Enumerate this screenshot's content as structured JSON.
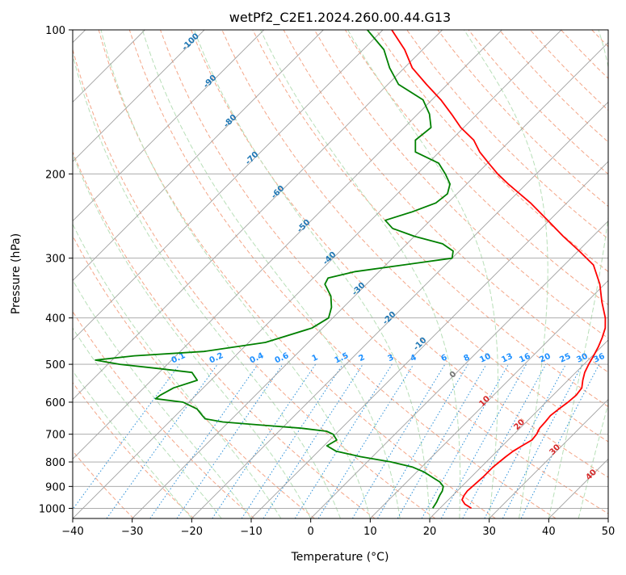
{
  "chart_data": {
    "type": "line",
    "title": "wetPf2_C2E1.2024.260.00.44.G13",
    "xlabel": "Temperature (°C)",
    "ylabel": "Pressure (hPa)",
    "xlim": [
      -40,
      50
    ],
    "ylim": [
      1050,
      100
    ],
    "y_scale": "log",
    "x_ticks": [
      -40,
      -30,
      -20,
      -10,
      0,
      10,
      20,
      30,
      40,
      50
    ],
    "y_ticks": [
      100,
      200,
      300,
      400,
      500,
      600,
      700,
      800,
      900,
      1000
    ],
    "grid": true,
    "skew_deg": 45,
    "series": [
      {
        "key": "temperature",
        "color": "#ff0000",
        "points": [
          [
            1000,
            25.3
          ],
          [
            980,
            23.5
          ],
          [
            960,
            22.3
          ],
          [
            940,
            21.9
          ],
          [
            920,
            21.7
          ],
          [
            900,
            21.8
          ],
          [
            880,
            21.9
          ],
          [
            860,
            22.0
          ],
          [
            840,
            22.0
          ],
          [
            820,
            22.0
          ],
          [
            800,
            22.2
          ],
          [
            780,
            22.4
          ],
          [
            760,
            22.7
          ],
          [
            740,
            23.3
          ],
          [
            720,
            24.0
          ],
          [
            700,
            23.8
          ],
          [
            680,
            23.3
          ],
          [
            660,
            23.2
          ],
          [
            640,
            23.0
          ],
          [
            620,
            23.3
          ],
          [
            600,
            23.7
          ],
          [
            580,
            23.9
          ],
          [
            560,
            23.6
          ],
          [
            540,
            22.5
          ],
          [
            520,
            21.5
          ],
          [
            500,
            20.8
          ],
          [
            480,
            20.2
          ],
          [
            460,
            19.5
          ],
          [
            440,
            18.6
          ],
          [
            420,
            17.5
          ],
          [
            400,
            15.8
          ],
          [
            370,
            12.5
          ],
          [
            340,
            9.2
          ],
          [
            310,
            4.9
          ],
          [
            290,
            0.2
          ],
          [
            270,
            -5.0
          ],
          [
            250,
            -10.3
          ],
          [
            230,
            -16.1
          ],
          [
            210,
            -23.0
          ],
          [
            200,
            -26.5
          ],
          [
            190,
            -29.8
          ],
          [
            180,
            -33.2
          ],
          [
            170,
            -36.2
          ],
          [
            160,
            -40.5
          ],
          [
            150,
            -44.3
          ],
          [
            140,
            -48.5
          ],
          [
            130,
            -53.5
          ],
          [
            120,
            -58.7
          ],
          [
            110,
            -63.0
          ],
          [
            100,
            -68.5
          ]
        ]
      },
      {
        "key": "dewpoint",
        "color": "#008000",
        "points": [
          [
            1000,
            18.8
          ],
          [
            970,
            18.4
          ],
          [
            940,
            17.8
          ],
          [
            920,
            17.5
          ],
          [
            900,
            16.9
          ],
          [
            880,
            15.5
          ],
          [
            860,
            13.4
          ],
          [
            840,
            11.3
          ],
          [
            820,
            8.5
          ],
          [
            800,
            4.0
          ],
          [
            790,
            1.0
          ],
          [
            780,
            -2.0
          ],
          [
            760,
            -7.0
          ],
          [
            740,
            -9.5
          ],
          [
            720,
            -8.8
          ],
          [
            700,
            -10.4
          ],
          [
            690,
            -12.0
          ],
          [
            680,
            -16.8
          ],
          [
            670,
            -24.0
          ],
          [
            660,
            -31.0
          ],
          [
            650,
            -34.5
          ],
          [
            640,
            -35.5
          ],
          [
            620,
            -37.5
          ],
          [
            600,
            -41.0
          ],
          [
            590,
            -46.2
          ],
          [
            580,
            -46.0
          ],
          [
            560,
            -45.0
          ],
          [
            540,
            -42.3
          ],
          [
            520,
            -44.5
          ],
          [
            510,
            -51.0
          ],
          [
            500,
            -58.0
          ],
          [
            490,
            -62.8
          ],
          [
            480,
            -57.0
          ],
          [
            470,
            -46.0
          ],
          [
            450,
            -37.2
          ],
          [
            420,
            -31.8
          ],
          [
            400,
            -30.7
          ],
          [
            380,
            -32.0
          ],
          [
            360,
            -34.0
          ],
          [
            340,
            -37.0
          ],
          [
            330,
            -37.5
          ],
          [
            320,
            -34.0
          ],
          [
            300,
            -20.0
          ],
          [
            290,
            -21.0
          ],
          [
            280,
            -24.0
          ],
          [
            270,
            -30.0
          ],
          [
            260,
            -35.0
          ],
          [
            250,
            -37.6
          ],
          [
            240,
            -34.5
          ],
          [
            230,
            -32.0
          ],
          [
            220,
            -31.6
          ],
          [
            210,
            -32.8
          ],
          [
            200,
            -35.3
          ],
          [
            190,
            -38.2
          ],
          [
            180,
            -44.0
          ],
          [
            170,
            -46.0
          ],
          [
            160,
            -45.5
          ],
          [
            150,
            -48.0
          ],
          [
            140,
            -51.5
          ],
          [
            130,
            -58.2
          ],
          [
            120,
            -62.5
          ],
          [
            110,
            -66.5
          ],
          [
            100,
            -72.6
          ]
        ]
      }
    ],
    "mixing_ratio_labels": [
      "0.1",
      "0.2",
      "0.4",
      "0.6",
      "1",
      "1.5",
      "2",
      "3",
      "4",
      "6",
      "8",
      "10",
      "13",
      "16",
      "20",
      "25",
      "30",
      "36"
    ],
    "dry_adiabat_labels": [
      "-100",
      "-90",
      "-80",
      "-70",
      "-60",
      "-50",
      "-40",
      "-30",
      "-20",
      "-10"
    ],
    "moist_adiabat_labels": [
      "0",
      "10",
      "20",
      "30",
      "40"
    ],
    "colors": {
      "temperature": "#ff0000",
      "dewpoint": "#008000",
      "isotherm": "#a0a0a0",
      "dry_adiabat": "#f4a688",
      "moist_adiabat": "#b8dfb8",
      "mixing_ratio": "#2a8fd8",
      "dry_label": "#1f77b4",
      "moist_label": "#d62728",
      "mixing_label": "#1e90ff"
    }
  }
}
